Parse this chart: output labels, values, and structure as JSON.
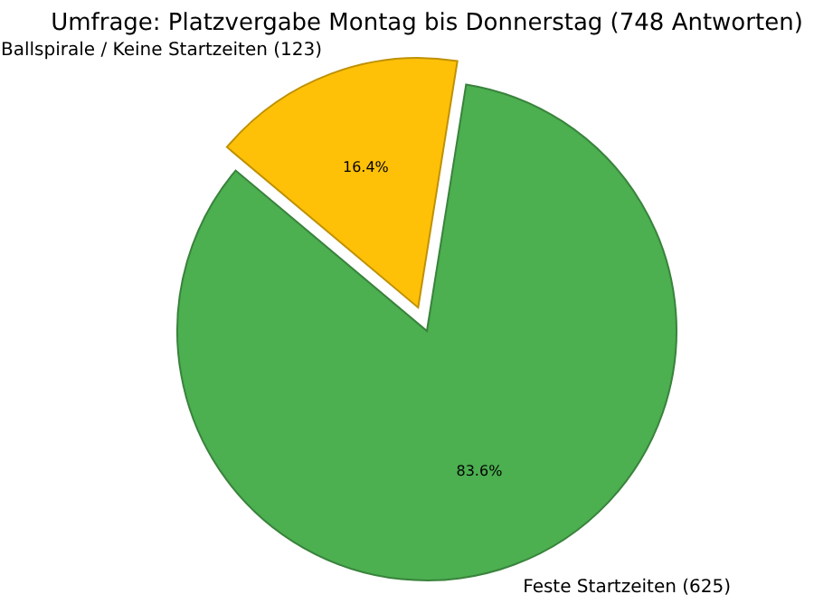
{
  "chart_data": {
    "type": "pie",
    "title": "Umfrage: Platzvergabe Montag bis Donnerstag (748 Antworten)",
    "categories": [
      "Feste Startzeiten (625)",
      "Ballspirale / Keine Startzeiten (123)"
    ],
    "values": [
      83.6,
      16.4
    ],
    "colors": [
      "#4caf50",
      "#ffc107"
    ],
    "value_labels": [
      "83.6%",
      "16.4%"
    ]
  }
}
